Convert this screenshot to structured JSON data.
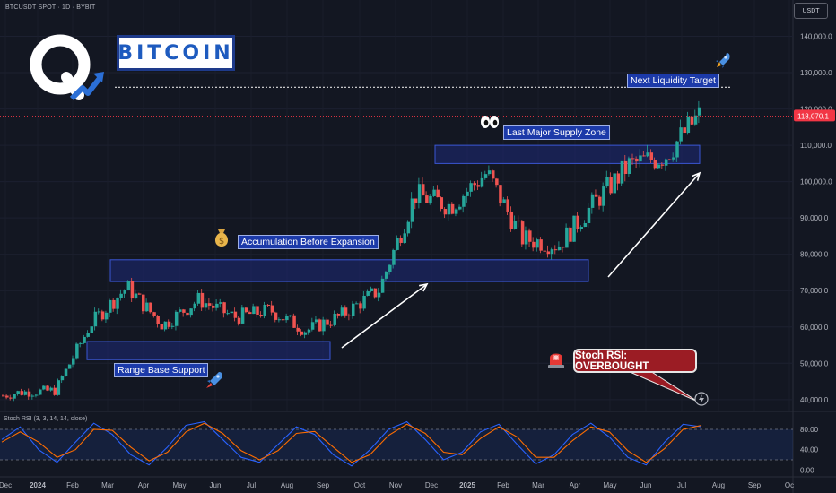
{
  "header": {
    "symbol": "BTCUSDT SPOT · 1D · BYBIT",
    "currency": "USDT"
  },
  "brand": {
    "title": "BITCOIN"
  },
  "annotations": {
    "next_liquidity_target": "Next Liquidity Target",
    "last_major_supply_zone": "Last Major Supply Zone",
    "accumulation": "Accumulation Before Expansion",
    "range_base_support": "Range Base Support",
    "stoch_callout": "Stoch RSI: OVERBOUGHT"
  },
  "icons": {
    "rocket": "rocket-icon",
    "eyes": "eyes-icon",
    "money_bag": "money-bag-icon",
    "siren": "siren-icon",
    "lightning": "lightning-icon"
  },
  "colors": {
    "background": "#131722",
    "bull": "#26a69a",
    "bear": "#ef5350",
    "zone_fill": "#1e2a78",
    "zone_border": "#3a56d4",
    "price_badge": "#f23645",
    "stoch_k": "#2962ff",
    "stoch_d": "#ff6d00"
  },
  "chart_data": [
    {
      "type": "candlestick",
      "title": "BTCUSDT SPOT · 1D · BYBIT",
      "x_ticks": [
        "Dec",
        "2024",
        "Feb",
        "Mar",
        "Apr",
        "May",
        "Jun",
        "Jul",
        "Aug",
        "Sep",
        "Oct",
        "Nov",
        "Dec",
        "2025",
        "Feb",
        "Mar",
        "Apr",
        "May",
        "Jun",
        "Jul",
        "Aug",
        "Sep",
        "Oc"
      ],
      "y_ticks": [
        "40,000.0",
        "50,000.0",
        "60,000.0",
        "70,000.0",
        "80,000.0",
        "90,000.0",
        "100,000.0",
        "110,000.0",
        "120,000.0",
        "130,000.0",
        "140,000.0"
      ],
      "ylim": [
        37000,
        150000
      ],
      "last_price": "118,070.1",
      "target_level": 126000,
      "closes": {
        "months": [
          "2023-12",
          "2024-01",
          "2024-02",
          "2024-03",
          "2024-04",
          "2024-05",
          "2024-06",
          "2024-07",
          "2024-08",
          "2024-09",
          "2024-10",
          "2024-11",
          "2024-12",
          "2025-01",
          "2025-02",
          "2025-03",
          "2025-04",
          "2025-05",
          "2025-06",
          "2025-07"
        ],
        "values": [
          42000,
          42500,
          61000,
          71000,
          60500,
          67500,
          62700,
          64600,
          59000,
          63300,
          70200,
          96400,
          93400,
          102400,
          84300,
          82500,
          94200,
          104600,
          107100,
          118070
        ]
      },
      "zones": [
        {
          "name": "Range Base Support",
          "low": 51000,
          "high": 56000
        },
        {
          "name": "Accumulation Before Expansion",
          "low": 72500,
          "high": 78500
        },
        {
          "name": "Last Major Supply Zone",
          "low": 105000,
          "high": 110000
        }
      ]
    },
    {
      "type": "line",
      "title": "Stoch RSI (3, 3, 14, 14, close)",
      "y_ticks": [
        "0.00",
        "40.00",
        "80.00"
      ],
      "ylim": [
        -10,
        110
      ],
      "bands": [
        20,
        80
      ],
      "series": [
        {
          "name": "K",
          "values": [
            60,
            85,
            40,
            15,
            55,
            92,
            70,
            30,
            10,
            45,
            88,
            95,
            60,
            25,
            15,
            50,
            85,
            70,
            30,
            8,
            40,
            80,
            95,
            60,
            20,
            35,
            75,
            90,
            50,
            12,
            30,
            70,
            92,
            65,
            25,
            10,
            55,
            90,
            85
          ]
        },
        {
          "name": "D",
          "values": [
            55,
            75,
            55,
            25,
            40,
            80,
            78,
            45,
            18,
            35,
            75,
            92,
            72,
            38,
            20,
            38,
            72,
            76,
            45,
            15,
            30,
            68,
            90,
            72,
            35,
            30,
            62,
            85,
            65,
            25,
            25,
            58,
            85,
            75,
            38,
            15,
            42,
            80,
            88
          ]
        }
      ]
    }
  ]
}
